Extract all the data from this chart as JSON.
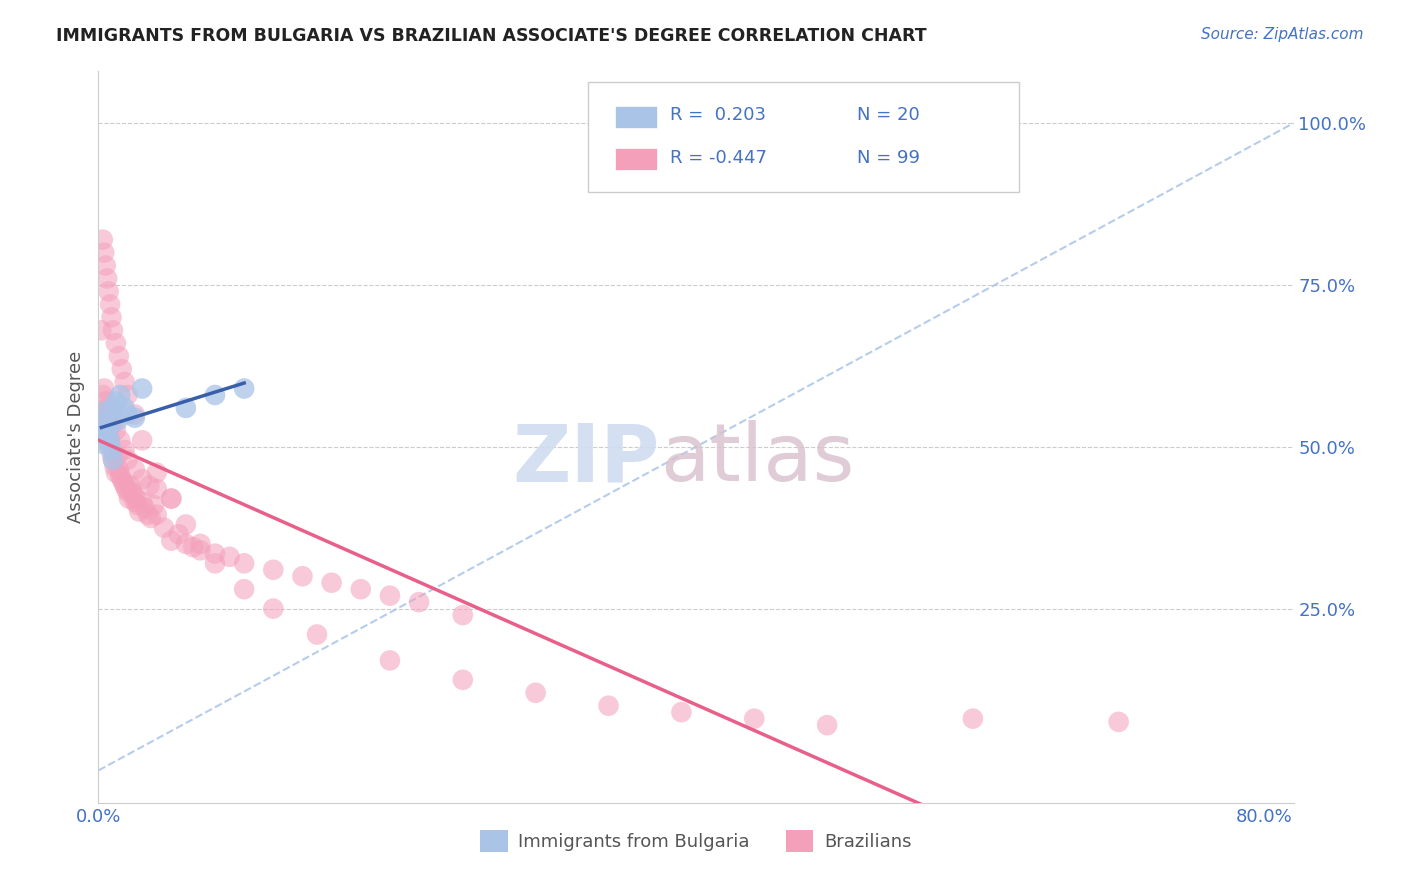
{
  "title": "IMMIGRANTS FROM BULGARIA VS BRAZILIAN ASSOCIATE'S DEGREE CORRELATION CHART",
  "source": "Source: ZipAtlas.com",
  "ylabel": "Associate's Degree",
  "xlim": [
    0.0,
    0.82
  ],
  "ylim": [
    -0.05,
    1.08
  ],
  "x_tick_positions": [
    0.0,
    0.8
  ],
  "x_tick_labels": [
    "0.0%",
    "80.0%"
  ],
  "y_tick_positions": [
    0.25,
    0.5,
    0.75,
    1.0
  ],
  "y_tick_labels": [
    "25.0%",
    "50.0%",
    "75.0%",
    "100.0%"
  ],
  "series1_color": "#aac4e8",
  "series2_color": "#f4a0ba",
  "trendline1_color": "#3a5faa",
  "trendline2_color": "#e8608a",
  "diagonal_color": "#aac4e8",
  "background_color": "#ffffff",
  "grid_color": "#cccccc",
  "title_color": "#222222",
  "source_color": "#4472c4",
  "axis_label_color": "#555555",
  "tick_label_color": "#4472c4",
  "watermark_zip_color": "#d0ddf0",
  "watermark_atlas_color": "#d8c0cc",
  "legend_r1": "R =  0.203",
  "legend_n1": "N = 20",
  "legend_r2": "R = -0.447",
  "legend_n2": "N = 99",
  "legend_text_color": "#4472c4",
  "series1_x": [
    0.002,
    0.003,
    0.004,
    0.005,
    0.006,
    0.007,
    0.008,
    0.009,
    0.01,
    0.011,
    0.012,
    0.013,
    0.015,
    0.018,
    0.02,
    0.025,
    0.03,
    0.06,
    0.08,
    0.1
  ],
  "series1_y": [
    0.505,
    0.52,
    0.54,
    0.555,
    0.515,
    0.53,
    0.51,
    0.495,
    0.48,
    0.56,
    0.57,
    0.54,
    0.58,
    0.56,
    0.55,
    0.545,
    0.59,
    0.56,
    0.58,
    0.59
  ],
  "series2_x": [
    0.002,
    0.003,
    0.004,
    0.005,
    0.006,
    0.007,
    0.008,
    0.009,
    0.01,
    0.011,
    0.012,
    0.013,
    0.014,
    0.015,
    0.016,
    0.017,
    0.018,
    0.019,
    0.02,
    0.021,
    0.022,
    0.023,
    0.024,
    0.025,
    0.026,
    0.027,
    0.028,
    0.03,
    0.032,
    0.034,
    0.036,
    0.038,
    0.04,
    0.045,
    0.05,
    0.055,
    0.06,
    0.065,
    0.07,
    0.08,
    0.09,
    0.1,
    0.12,
    0.14,
    0.16,
    0.18,
    0.2,
    0.22,
    0.25,
    0.003,
    0.004,
    0.005,
    0.006,
    0.007,
    0.008,
    0.009,
    0.01,
    0.012,
    0.015,
    0.018,
    0.02,
    0.025,
    0.03,
    0.035,
    0.04,
    0.05,
    0.002,
    0.003,
    0.004,
    0.005,
    0.006,
    0.007,
    0.008,
    0.009,
    0.01,
    0.012,
    0.014,
    0.016,
    0.018,
    0.02,
    0.025,
    0.03,
    0.04,
    0.05,
    0.06,
    0.07,
    0.08,
    0.1,
    0.12,
    0.15,
    0.2,
    0.25,
    0.3,
    0.35,
    0.4,
    0.45,
    0.5,
    0.6,
    0.7
  ],
  "series2_y": [
    0.51,
    0.545,
    0.53,
    0.52,
    0.535,
    0.515,
    0.505,
    0.49,
    0.48,
    0.47,
    0.46,
    0.485,
    0.465,
    0.455,
    0.45,
    0.445,
    0.44,
    0.435,
    0.43,
    0.42,
    0.44,
    0.43,
    0.425,
    0.415,
    0.42,
    0.41,
    0.4,
    0.415,
    0.405,
    0.395,
    0.39,
    0.41,
    0.395,
    0.375,
    0.355,
    0.365,
    0.35,
    0.345,
    0.34,
    0.335,
    0.33,
    0.32,
    0.31,
    0.3,
    0.29,
    0.28,
    0.27,
    0.26,
    0.24,
    0.58,
    0.59,
    0.57,
    0.56,
    0.55,
    0.555,
    0.54,
    0.535,
    0.525,
    0.51,
    0.495,
    0.48,
    0.465,
    0.45,
    0.44,
    0.435,
    0.42,
    0.68,
    0.82,
    0.8,
    0.78,
    0.76,
    0.74,
    0.72,
    0.7,
    0.68,
    0.66,
    0.64,
    0.62,
    0.6,
    0.58,
    0.55,
    0.51,
    0.46,
    0.42,
    0.38,
    0.35,
    0.32,
    0.28,
    0.25,
    0.21,
    0.17,
    0.14,
    0.12,
    0.1,
    0.09,
    0.08,
    0.07,
    0.08,
    0.075
  ]
}
